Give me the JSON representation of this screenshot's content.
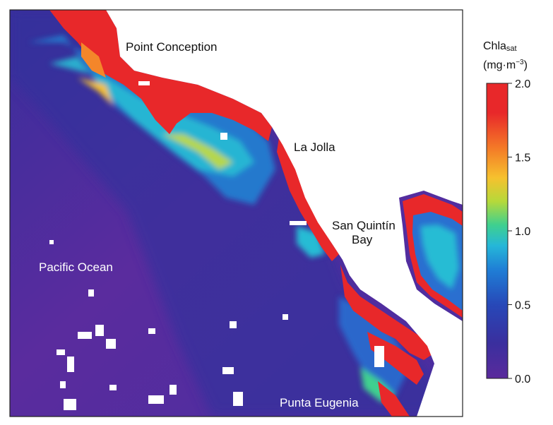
{
  "map": {
    "labels": {
      "point_conception": "Point Conception",
      "la_jolla": "La Jolla",
      "san_quintin_1": "San Quintín",
      "san_quintin_2": "Bay",
      "pacific_ocean": "Pacific Ocean",
      "punta_eugenia": "Punta Eugenia"
    }
  },
  "colorbar": {
    "title_main": "Chla",
    "title_sub": "sat",
    "unit_open": "(mg·m",
    "unit_exp": "−3",
    "unit_close": ")",
    "ticks": [
      "2.0",
      "1.5",
      "1.0",
      "0.5",
      "0.0"
    ],
    "min": 0.0,
    "max": 2.0,
    "colors": [
      "#5a2a9c",
      "#3a2f9e",
      "#2748b8",
      "#1f7fd6",
      "#25b7d8",
      "#3fd08f",
      "#b6d93a",
      "#f6c12e",
      "#f47a27",
      "#e8282a"
    ]
  },
  "colors": {
    "land": "#ffffff",
    "ocean_offshore": "#5c2c9e",
    "ocean_mid": "#45309e",
    "high_chl": "#e8282a",
    "frame": "#222222"
  }
}
